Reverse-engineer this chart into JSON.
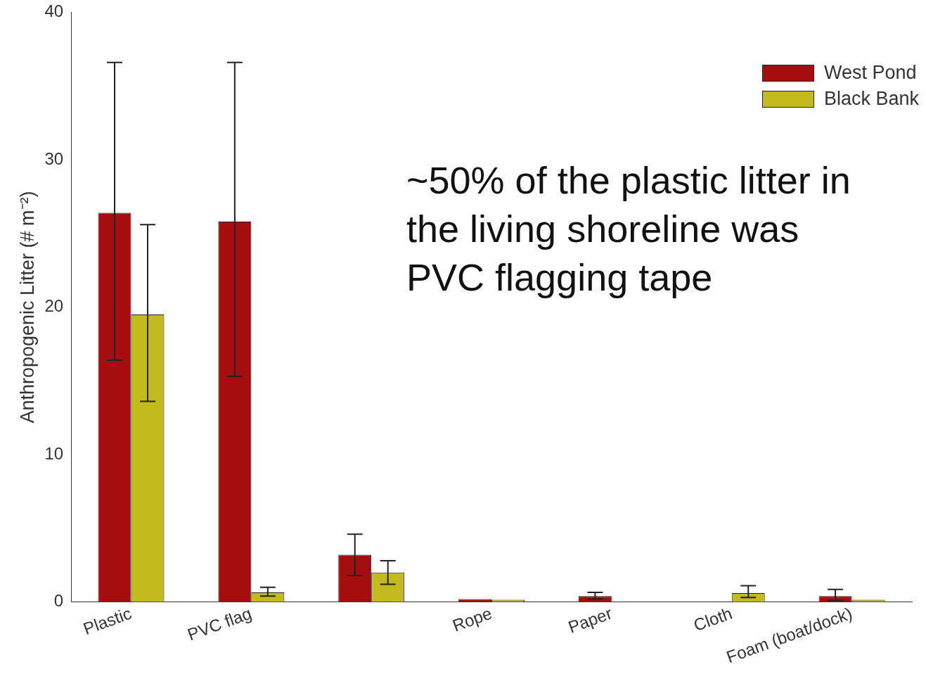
{
  "chart_data": {
    "type": "bar",
    "ylabel": "Anthropogenic Litter (# m⁻²)",
    "categories": [
      "Plastic",
      "PVC flag",
      null,
      "Rope",
      "Paper",
      "Cloth",
      "Foam (boat/dock)"
    ],
    "series": [
      {
        "name": "West Pond",
        "color": "#a50e0e",
        "values": [
          26.4,
          25.8,
          3.2,
          0.2,
          0.4,
          null,
          0.4
        ],
        "errors": [
          [
            16.4,
            36.6
          ],
          [
            15.3,
            36.6
          ],
          [
            1.8,
            4.6
          ],
          null,
          [
            0.2,
            0.65
          ],
          null,
          [
            0.1,
            0.85
          ]
        ]
      },
      {
        "name": "Black Bank",
        "color": "#c3bb1e",
        "values": [
          19.5,
          0.65,
          2.0,
          0.15,
          null,
          0.6,
          0.15
        ],
        "errors": [
          [
            13.6,
            25.6
          ],
          [
            0.4,
            1.0
          ],
          [
            1.2,
            2.8
          ],
          null,
          null,
          [
            0.3,
            1.1
          ],
          null
        ]
      }
    ],
    "ylim": [
      0,
      40
    ],
    "yticks": [
      0,
      10,
      20,
      30,
      40
    ],
    "grid": false,
    "legend": "top right",
    "annotations": [
      "~50% of the plastic litter in the living shoreline was PVC flagging tape"
    ]
  }
}
